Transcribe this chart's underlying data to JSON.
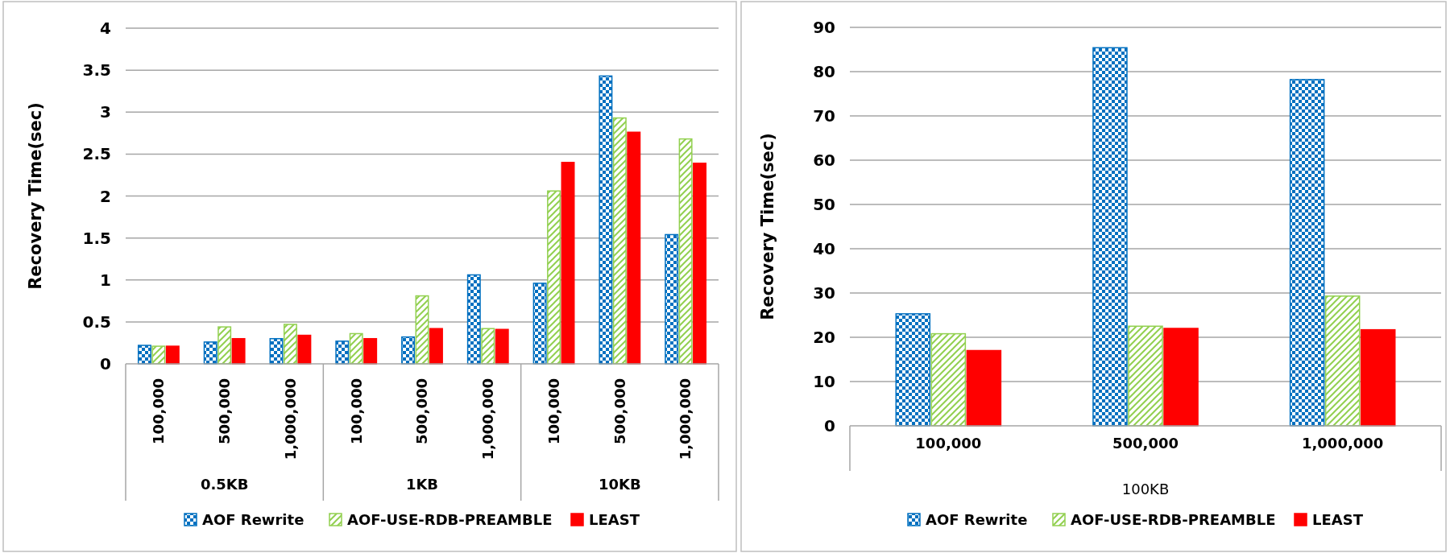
{
  "chart_data": [
    {
      "type": "bar",
      "ylabel": "Recovery Time(sec)",
      "categories": [
        "100,000",
        "500,000",
        "1,000,000",
        "100,000",
        "500,000",
        "1,000,000",
        "100,000",
        "500,000",
        "1,000,000"
      ],
      "series": [
        {
          "name": "AOF Rewrite",
          "color": "#0070c0",
          "values": [
            0.22,
            0.26,
            0.3,
            0.27,
            0.32,
            1.06,
            0.96,
            3.43,
            1.54
          ]
        },
        {
          "name": "AOF-USE-RDB-PREAMBLE",
          "color": "#92d050",
          "values": [
            0.21,
            0.44,
            0.47,
            0.36,
            0.81,
            0.42,
            2.06,
            2.93,
            2.68
          ]
        },
        {
          "name": "LEAST",
          "color": "#ff0000",
          "values": [
            0.21,
            0.3,
            0.34,
            0.3,
            0.42,
            0.41,
            2.4,
            2.76,
            2.39
          ]
        }
      ],
      "annotations": [
        "0.5KB",
        "1KB",
        "10KB"
      ],
      "ylim": [
        0,
        4
      ],
      "yticks": [
        0,
        0.5,
        1,
        1.5,
        2,
        2.5,
        3,
        3.5,
        4
      ],
      "grid": "y",
      "legend": "bottom"
    },
    {
      "type": "bar",
      "ylabel": "Recovery Time(sec)",
      "xlabel": "100KB",
      "categories": [
        "100,000",
        "500,000",
        "1,000,000"
      ],
      "series": [
        {
          "name": "AOF Rewrite",
          "color": "#0070c0",
          "values": [
            25.3,
            85.4,
            78.2
          ]
        },
        {
          "name": "AOF-USE-RDB-PREAMBLE",
          "color": "#92d050",
          "values": [
            20.8,
            22.5,
            29.3
          ]
        },
        {
          "name": "LEAST",
          "color": "#ff0000",
          "values": [
            17.0,
            22.0,
            21.7
          ]
        }
      ],
      "ylim": [
        0,
        90
      ],
      "yticks": [
        0,
        10,
        20,
        30,
        40,
        50,
        60,
        70,
        80,
        90
      ],
      "grid": "y",
      "legend": "bottom"
    }
  ]
}
